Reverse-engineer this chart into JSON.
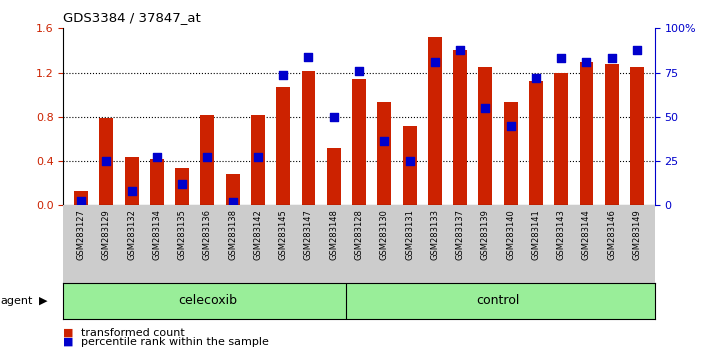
{
  "title": "GDS3384 / 37847_at",
  "samples": [
    "GSM283127",
    "GSM283129",
    "GSM283132",
    "GSM283134",
    "GSM283135",
    "GSM283136",
    "GSM283138",
    "GSM283142",
    "GSM283145",
    "GSM283147",
    "GSM283148",
    "GSM283128",
    "GSM283130",
    "GSM283131",
    "GSM283133",
    "GSM283137",
    "GSM283139",
    "GSM283140",
    "GSM283141",
    "GSM283143",
    "GSM283144",
    "GSM283146",
    "GSM283149"
  ],
  "bar_values": [
    0.13,
    0.79,
    0.44,
    0.42,
    0.34,
    0.82,
    0.28,
    0.82,
    1.07,
    1.21,
    0.52,
    1.14,
    0.93,
    0.72,
    1.52,
    1.4,
    1.25,
    0.93,
    1.12,
    1.2,
    1.3,
    1.28,
    1.25
  ],
  "percentile_values": [
    0.04,
    0.4,
    0.13,
    0.44,
    0.19,
    0.44,
    0.03,
    0.44,
    1.18,
    1.34,
    0.8,
    1.21,
    0.58,
    0.4,
    1.3,
    1.4,
    0.88,
    0.72,
    1.15,
    1.33,
    1.3,
    1.33,
    1.4
  ],
  "group_labels": [
    "celecoxib",
    "control"
  ],
  "group_sizes": [
    11,
    12
  ],
  "bar_color": "#cc2200",
  "dot_color": "#0000cc",
  "ylim": [
    0,
    1.6
  ],
  "y_ticks_left": [
    0,
    0.4,
    0.8,
    1.2,
    1.6
  ],
  "y_ticks_right": [
    0,
    25,
    50,
    75,
    100
  ],
  "background_color": "#ffffff",
  "plot_bg_color": "#ffffff",
  "group_bg_color": "#99ee99",
  "xticklabel_bg": "#cccccc",
  "agent_label": "agent",
  "legend_items": [
    "transformed count",
    "percentile rank within the sample"
  ]
}
